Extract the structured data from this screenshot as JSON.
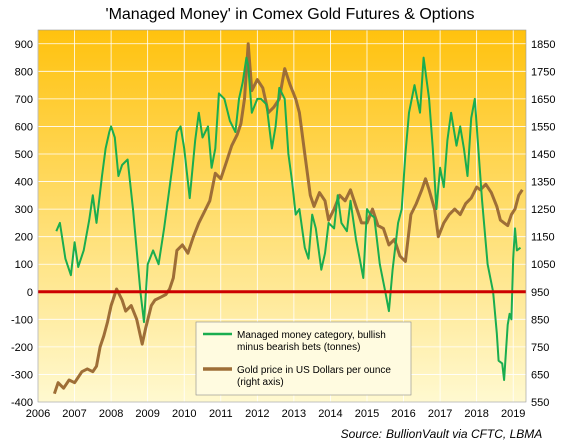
{
  "chart_data": {
    "type": "line",
    "title": "'Managed Money' in Comex Gold Futures & Options",
    "source_label": "Source:",
    "source_text": "BullionVault via CFTC, LBMA",
    "x_ticks": [
      "2006",
      "2007",
      "2008",
      "2009",
      "2010",
      "2011",
      "2012",
      "2013",
      "2014",
      "2015",
      "2016",
      "2017",
      "2018",
      "2019"
    ],
    "y_left_ticks": [
      "900",
      "800",
      "700",
      "600",
      "500",
      "400",
      "300",
      "200",
      "100",
      "0",
      "-100",
      "-200",
      "-300",
      "-400"
    ],
    "y_right_ticks": [
      "1850",
      "1750",
      "1650",
      "1550",
      "1450",
      "1350",
      "1250",
      "1150",
      "1050",
      "950",
      "850",
      "750",
      "650",
      "550"
    ],
    "xlim": [
      2006,
      2019.35
    ],
    "ylim_left": [
      -400,
      950
    ],
    "ylim_right": [
      550,
      1900
    ],
    "zero_line": true,
    "legend_placement": "bottom-center",
    "colors": {
      "background_top": "#FFC20E",
      "background_bottom": "#FFF9D0",
      "managed_money": "#1AAD4F",
      "gold_price": "#9E6E37",
      "zero_line": "#CC0000",
      "legend_bg": "#FFFBE0"
    },
    "series": [
      {
        "key": "managed_money",
        "name": "Managed money category, bullish minus bearish bets (tonnes)",
        "legend_line1": "Managed money category, bullish",
        "legend_line2": "minus bearish bets (tonnes)",
        "axis": "left",
        "x": [
          2006.5,
          2006.6,
          2006.75,
          2006.9,
          2007.0,
          2007.1,
          2007.25,
          2007.4,
          2007.5,
          2007.6,
          2007.75,
          2007.85,
          2007.95,
          2008.0,
          2008.1,
          2008.2,
          2008.3,
          2008.45,
          2008.6,
          2008.7,
          2008.8,
          2008.9,
          2009.0,
          2009.15,
          2009.3,
          2009.45,
          2009.55,
          2009.7,
          2009.8,
          2009.9,
          2010.0,
          2010.15,
          2010.3,
          2010.4,
          2010.5,
          2010.65,
          2010.75,
          2010.85,
          2010.95,
          2011.1,
          2011.25,
          2011.4,
          2011.5,
          2011.6,
          2011.7,
          2011.75,
          2011.85,
          2012.0,
          2012.1,
          2012.25,
          2012.4,
          2012.5,
          2012.6,
          2012.75,
          2012.85,
          2012.95,
          2013.05,
          2013.15,
          2013.3,
          2013.4,
          2013.5,
          2013.6,
          2013.75,
          2013.85,
          2013.95,
          2014.1,
          2014.2,
          2014.3,
          2014.45,
          2014.55,
          2014.7,
          2014.8,
          2014.9,
          2015.0,
          2015.1,
          2015.2,
          2015.35,
          2015.5,
          2015.6,
          2015.7,
          2015.85,
          2015.95,
          2016.05,
          2016.15,
          2016.3,
          2016.45,
          2016.55,
          2016.7,
          2016.8,
          2016.9,
          2017.0,
          2017.1,
          2017.2,
          2017.3,
          2017.45,
          2017.55,
          2017.65,
          2017.75,
          2017.85,
          2017.95,
          2018.05,
          2018.15,
          2018.3,
          2018.45,
          2018.55,
          2018.6,
          2018.7,
          2018.75,
          2018.85,
          2018.9,
          2018.95,
          2019.0,
          2019.05,
          2019.1,
          2019.2
        ],
        "values": [
          220,
          250,
          120,
          60,
          180,
          90,
          150,
          260,
          350,
          250,
          420,
          520,
          580,
          600,
          560,
          420,
          460,
          480,
          300,
          150,
          0,
          -110,
          100,
          150,
          100,
          230,
          330,
          480,
          580,
          600,
          520,
          340,
          550,
          650,
          560,
          600,
          450,
          520,
          720,
          700,
          620,
          580,
          700,
          760,
          850,
          820,
          650,
          700,
          700,
          680,
          520,
          600,
          740,
          700,
          500,
          400,
          280,
          300,
          160,
          120,
          280,
          230,
          80,
          140,
          250,
          230,
          350,
          250,
          220,
          330,
          190,
          120,
          50,
          300,
          280,
          270,
          100,
          0,
          -70,
          80,
          250,
          300,
          500,
          650,
          750,
          650,
          850,
          700,
          520,
          300,
          450,
          380,
          550,
          650,
          530,
          600,
          520,
          420,
          630,
          700,
          510,
          330,
          100,
          0,
          -150,
          -250,
          -260,
          -320,
          -120,
          -80,
          -100,
          120,
          230,
          150,
          160
        ]
      },
      {
        "key": "gold_price",
        "name": "Gold price in US Dollars per ounce (right axis)",
        "legend_line1": "Gold price in US Dollars per ounce",
        "legend_line2": "(right axis)",
        "axis": "right",
        "x": [
          2006.45,
          2006.55,
          2006.7,
          2006.85,
          2007.0,
          2007.2,
          2007.35,
          2007.5,
          2007.6,
          2007.7,
          2007.8,
          2007.9,
          2008.0,
          2008.15,
          2008.3,
          2008.4,
          2008.55,
          2008.7,
          2008.85,
          2008.95,
          2009.1,
          2009.2,
          2009.35,
          2009.5,
          2009.6,
          2009.7,
          2009.8,
          2009.95,
          2010.1,
          2010.25,
          2010.4,
          2010.55,
          2010.7,
          2010.85,
          2011.0,
          2011.15,
          2011.3,
          2011.45,
          2011.55,
          2011.65,
          2011.75,
          2011.85,
          2012.0,
          2012.15,
          2012.3,
          2012.45,
          2012.6,
          2012.75,
          2012.9,
          2013.05,
          2013.15,
          2013.3,
          2013.45,
          2013.55,
          2013.7,
          2013.85,
          2013.95,
          2014.1,
          2014.25,
          2014.4,
          2014.55,
          2014.7,
          2014.85,
          2015.0,
          2015.15,
          2015.3,
          2015.45,
          2015.6,
          2015.75,
          2015.9,
          2016.05,
          2016.2,
          2016.35,
          2016.5,
          2016.6,
          2016.7,
          2016.85,
          2016.95,
          2017.1,
          2017.25,
          2017.4,
          2017.55,
          2017.7,
          2017.85,
          2018.0,
          2018.1,
          2018.25,
          2018.4,
          2018.55,
          2018.65,
          2018.75,
          2018.85,
          2018.95,
          2019.05,
          2019.15,
          2019.25
        ],
        "values": [
          580,
          620,
          600,
          630,
          620,
          660,
          670,
          660,
          680,
          750,
          790,
          840,
          900,
          960,
          920,
          880,
          900,
          850,
          760,
          820,
          900,
          920,
          930,
          940,
          960,
          1000,
          1100,
          1120,
          1090,
          1150,
          1200,
          1240,
          1280,
          1380,
          1360,
          1420,
          1480,
          1520,
          1560,
          1650,
          1850,
          1680,
          1720,
          1690,
          1600,
          1620,
          1650,
          1760,
          1700,
          1650,
          1600,
          1450,
          1300,
          1260,
          1310,
          1280,
          1210,
          1250,
          1300,
          1280,
          1320,
          1260,
          1200,
          1200,
          1250,
          1190,
          1180,
          1120,
          1140,
          1080,
          1060,
          1230,
          1270,
          1320,
          1360,
          1320,
          1250,
          1150,
          1200,
          1230,
          1250,
          1230,
          1270,
          1290,
          1330,
          1320,
          1340,
          1310,
          1260,
          1210,
          1200,
          1190,
          1230,
          1250,
          1300,
          1320
        ]
      }
    ]
  }
}
